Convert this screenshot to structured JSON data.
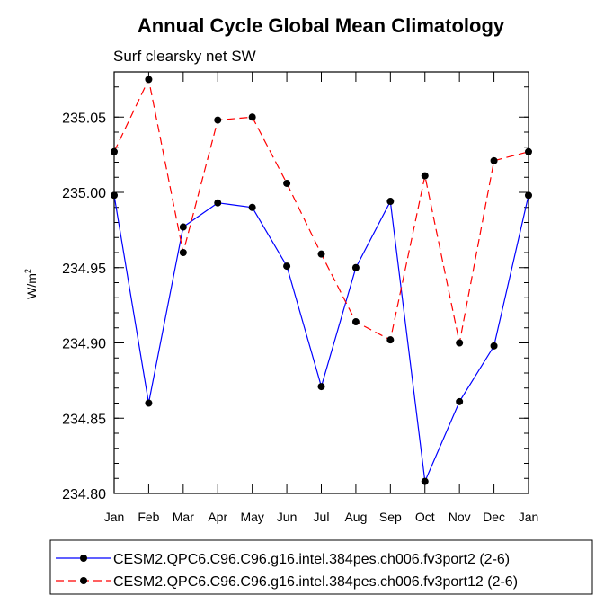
{
  "chart_data": {
    "type": "line",
    "title": "Annual Cycle Global Mean Climatology",
    "subtitle": "Surf clearsky net SW",
    "ylabel": "W/m",
    "ylabel_sup": "2",
    "xlabel": "",
    "ylim": [
      234.8,
      235.08
    ],
    "yticks": [
      234.8,
      234.85,
      234.9,
      234.95,
      235.0,
      235.05
    ],
    "ytick_labels": [
      "234.80",
      "234.85",
      "234.90",
      "234.95",
      "235.00",
      "235.05"
    ],
    "categories": [
      "Jan",
      "Feb",
      "Mar",
      "Apr",
      "May",
      "Jun",
      "Jul",
      "Aug",
      "Sep",
      "Oct",
      "Nov",
      "Dec",
      "Jan"
    ],
    "series": [
      {
        "name": "CESM2.QPC6.C96.C96.g16.intel.384pes.ch006.fv3port2 (2-6)",
        "color": "#0000ff",
        "line_style": "solid",
        "values": [
          234.998,
          234.86,
          234.977,
          234.993,
          234.99,
          234.951,
          234.871,
          234.95,
          234.994,
          234.808,
          234.861,
          234.898,
          234.998
        ]
      },
      {
        "name": "CESM2.QPC6.C96.C96.g16.intel.384pes.ch006.fv3port12 (2-6)",
        "color": "#ff0000",
        "line_style": "dashed",
        "values": [
          235.027,
          235.075,
          234.96,
          235.048,
          235.05,
          235.006,
          234.959,
          234.914,
          234.902,
          235.011,
          234.9,
          235.021,
          235.027
        ]
      }
    ],
    "grid": false,
    "legend_position": "bottom"
  }
}
